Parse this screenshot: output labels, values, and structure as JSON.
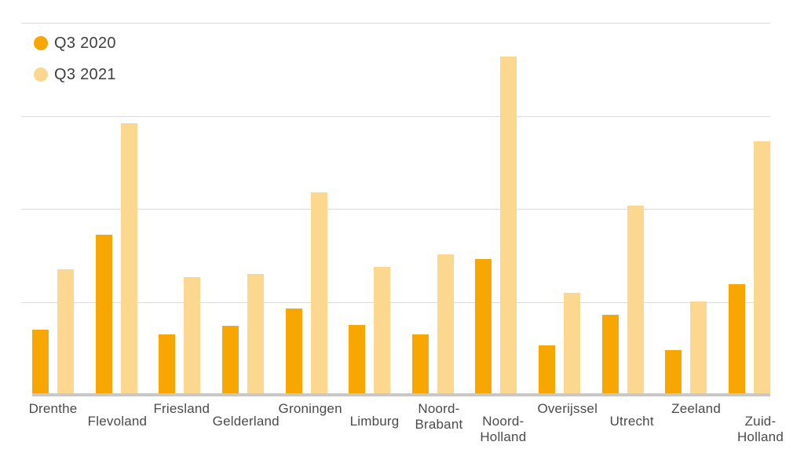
{
  "legend": {
    "items": [
      {
        "label": "Q3 2020",
        "color": "#F7A602"
      },
      {
        "label": "Q3 2021",
        "color": "#FBD78F"
      }
    ]
  },
  "colors": {
    "series_q3_2020": "#F7A602",
    "series_q3_2021": "#FBD78F",
    "gridline": "#dcdcdc",
    "axis_line": "#c8c8c8",
    "label_text": "#4a4a4a"
  },
  "chart_data": {
    "type": "bar",
    "title": "",
    "xlabel": "",
    "ylabel": "",
    "categories": [
      "Drenthe",
      "Flevoland",
      "Friesland",
      "Gelderland",
      "Groningen",
      "Limburg",
      "Noord-\nBrabant",
      "Noord-\nHolland",
      "Overijssel",
      "Utrecht",
      "Zeeland",
      "Zuid-\nHolland"
    ],
    "series": [
      {
        "name": "Q3 2020",
        "color": "#F7A602",
        "values": [
          17.5,
          43.0,
          16.2,
          18.6,
          23.2,
          18.8,
          16.3,
          36.4,
          13.3,
          21.5,
          12.0,
          29.7
        ]
      },
      {
        "name": "Q3 2021",
        "color": "#FBD78F",
        "values": [
          33.8,
          73.0,
          31.6,
          32.5,
          54.4,
          34.4,
          37.8,
          90.9,
          27.4,
          50.8,
          25.1,
          68.1
        ]
      }
    ],
    "ylim": [
      0,
      100
    ],
    "gridline_values": [
      25,
      50,
      75,
      100
    ],
    "y_tick_labels_visible": false,
    "grid": "horizontal",
    "legend_position": "top-left",
    "x_label_layout": "staggered"
  }
}
